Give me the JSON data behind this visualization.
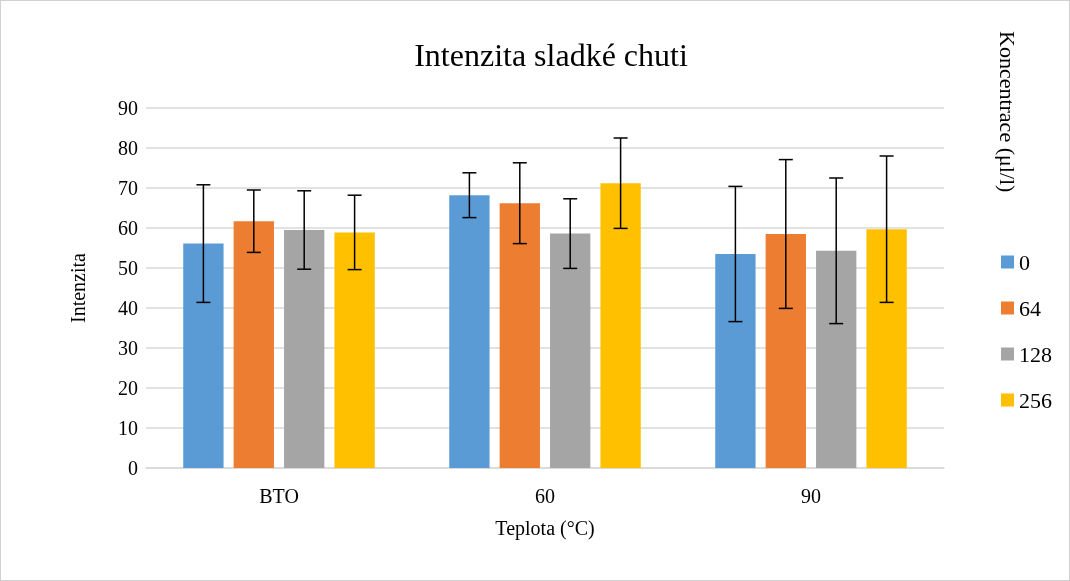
{
  "chart_data": {
    "type": "bar",
    "title": "Intenzita sladké chuti",
    "xlabel": "Teplota (°C)",
    "ylabel": "Intenzita",
    "legend_title": "Koncentrace (μl/l)",
    "categories": [
      "BTO",
      "60",
      "90"
    ],
    "series": [
      {
        "name": "0",
        "color": "#5b9bd5",
        "values": [
          56.1,
          68.2,
          53.5
        ],
        "errors": [
          14.7,
          5.6,
          16.9
        ]
      },
      {
        "name": "64",
        "color": "#ed7d31",
        "values": [
          61.7,
          66.2,
          58.5
        ],
        "errors": [
          7.8,
          10.1,
          18.6
        ]
      },
      {
        "name": "128",
        "color": "#a5a5a5",
        "values": [
          59.5,
          58.6,
          54.3
        ],
        "errors": [
          9.8,
          8.7,
          18.2
        ]
      },
      {
        "name": "256",
        "color": "#ffc000",
        "values": [
          58.9,
          71.2,
          59.7
        ],
        "errors": [
          9.3,
          11.3,
          18.3
        ]
      }
    ],
    "ylim": [
      0,
      90
    ],
    "yticks": [
      0,
      10,
      20,
      30,
      40,
      50,
      60,
      70,
      80,
      90
    ],
    "grid": "y",
    "legend": "right"
  }
}
